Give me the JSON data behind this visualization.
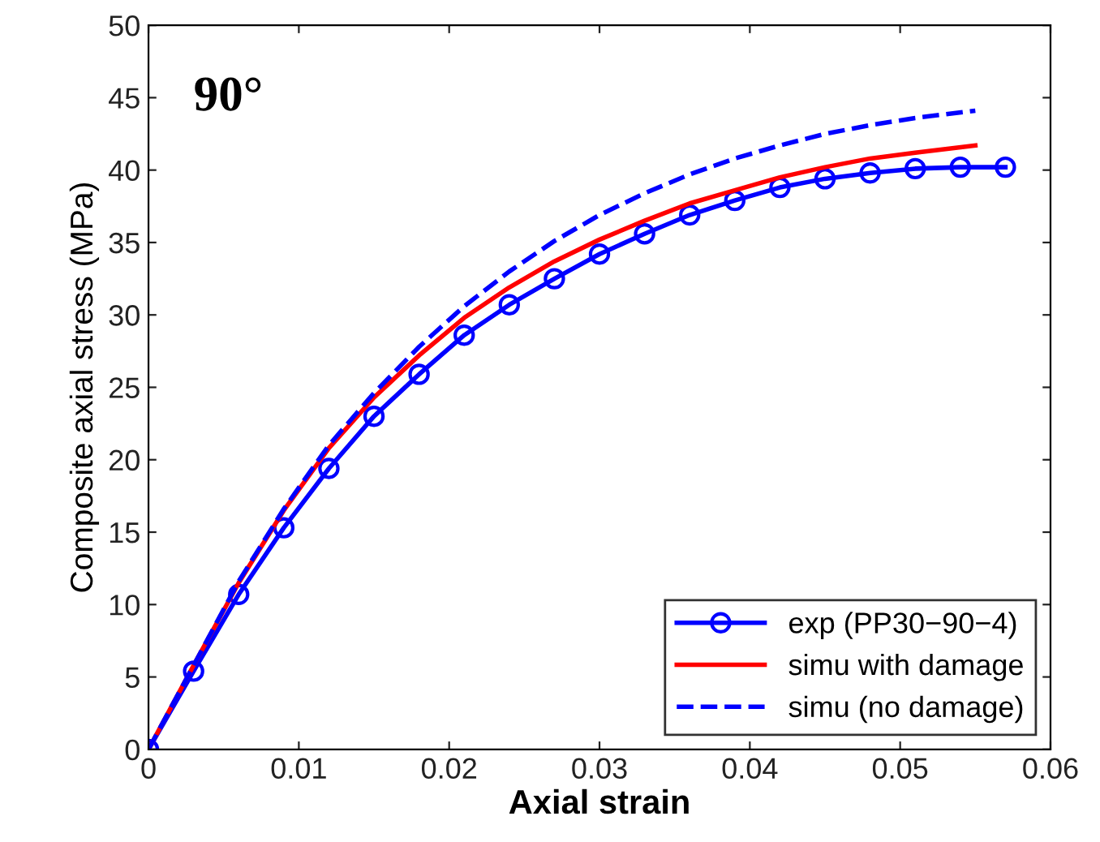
{
  "chart_data": {
    "type": "line",
    "xlabel": "Axial strain",
    "ylabel": "Composite axial stress (MPa)",
    "annotations": [
      "90°"
    ],
    "xlim": [
      0,
      0.06
    ],
    "ylim": [
      0,
      50
    ],
    "xticks": [
      0,
      0.01,
      0.02,
      0.03,
      0.04,
      0.05,
      0.06
    ],
    "yticks": [
      0,
      5,
      10,
      15,
      20,
      25,
      30,
      35,
      40,
      45,
      50
    ],
    "grid": false,
    "legend": "bottom right",
    "series": [
      {
        "name": "exp (PP30−90−4)",
        "color": "#0000ff",
        "marker": "circle",
        "line_style": "solid",
        "x": [
          0,
          0.003,
          0.006,
          0.009,
          0.012,
          0.015,
          0.018,
          0.021,
          0.024,
          0.027,
          0.03,
          0.033,
          0.036,
          0.039,
          0.042,
          0.045,
          0.048,
          0.051,
          0.054,
          0.057
        ],
        "values": [
          0,
          5.4,
          10.7,
          15.3,
          19.4,
          23.0,
          25.9,
          28.6,
          30.7,
          32.5,
          34.2,
          35.6,
          36.9,
          37.9,
          38.8,
          39.4,
          39.8,
          40.1,
          40.2,
          40.2
        ]
      },
      {
        "name": "simu with damage",
        "color": "#ff0000",
        "marker": "none",
        "line_style": "solid",
        "x": [
          0,
          0.003,
          0.006,
          0.009,
          0.012,
          0.015,
          0.018,
          0.021,
          0.024,
          0.027,
          0.03,
          0.033,
          0.036,
          0.039,
          0.042,
          0.045,
          0.048,
          0.051,
          0.055
        ],
        "values": [
          0,
          5.8,
          11.5,
          16.5,
          20.8,
          24.3,
          27.2,
          29.8,
          31.9,
          33.7,
          35.2,
          36.5,
          37.7,
          38.6,
          39.5,
          40.2,
          40.8,
          41.2,
          41.7
        ]
      },
      {
        "name": "simu (no damage)",
        "color": "#0000ff",
        "marker": "none",
        "line_style": "dashed",
        "x": [
          0,
          0.003,
          0.006,
          0.009,
          0.012,
          0.015,
          0.018,
          0.021,
          0.024,
          0.027,
          0.03,
          0.033,
          0.036,
          0.039,
          0.042,
          0.045,
          0.048,
          0.051,
          0.055
        ],
        "values": [
          0,
          5.8,
          11.6,
          16.6,
          21.0,
          24.6,
          27.8,
          30.6,
          33.0,
          35.1,
          36.9,
          38.4,
          39.7,
          40.8,
          41.7,
          42.5,
          43.1,
          43.6,
          44.1
        ]
      }
    ]
  }
}
